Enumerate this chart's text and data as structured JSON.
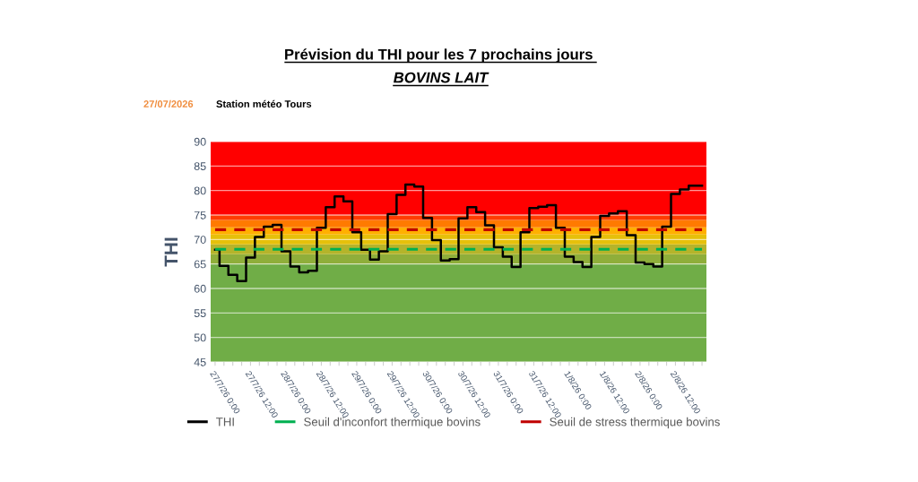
{
  "chart_data": {
    "type": "step",
    "title": "Prévision du THI pour les 7 prochains jours ",
    "subtitle": "BOVINS LAIT",
    "annotations": [
      "27/07/2026",
      "Station météo Tours"
    ],
    "ylabel": "THI",
    "categories": [
      "27/7/26 0:00",
      null,
      null,
      null,
      "27/7/26 12:00",
      null,
      null,
      null,
      "28/7/26 0:00",
      null,
      null,
      null,
      "28/7/26 12:00",
      null,
      null,
      null,
      "29/7/26 0:00",
      null,
      null,
      null,
      "29/7/26 12:00",
      null,
      null,
      null,
      "30/7/26 0:00",
      null,
      null,
      null,
      "30/7/26 12:00",
      null,
      null,
      null,
      "31/7/26 0:00",
      null,
      null,
      null,
      "31/7/26 12:00",
      null,
      null,
      null,
      "1/8/26 0:00",
      null,
      null,
      null,
      "1/8/26 12:00",
      null,
      null,
      null,
      "2/8/26 0:00",
      null,
      null,
      null,
      "2/8/26 12:00",
      null,
      null,
      null
    ],
    "series": [
      {
        "name": "THI",
        "color": "#000000",
        "line_style": "solid",
        "values": [
          67.9,
          64.6,
          62.8,
          61.5,
          66.3,
          70.5,
          72.6,
          73.0,
          67.6,
          64.5,
          63.3,
          63.6,
          72.4,
          76.6,
          78.8,
          77.8,
          71.5,
          67.9,
          65.9,
          67.6,
          75.2,
          79.1,
          81.2,
          80.8,
          74.4,
          69.9,
          65.7,
          66.0,
          74.3,
          76.6,
          75.6,
          72.9,
          68.4,
          66.5,
          64.4,
          71.5,
          76.4,
          76.7,
          77.0,
          72.4,
          66.5,
          65.4,
          64.4,
          70.5,
          74.8,
          75.3,
          75.8,
          70.9,
          65.3,
          65.0,
          64.5,
          72.6,
          79.3,
          80.2,
          81.0,
          81.0
        ]
      },
      {
        "name": "Seuil d'inconfort thermique bovins",
        "color": "#00b050",
        "type": "line",
        "line_style": "dashed",
        "values": [
          68,
          68,
          68,
          68,
          68,
          68,
          68,
          68,
          68,
          68,
          68,
          68,
          68,
          68,
          68,
          68,
          68,
          68,
          68,
          68,
          68,
          68,
          68,
          68,
          68,
          68,
          68,
          68,
          68,
          68,
          68,
          68,
          68,
          68,
          68,
          68,
          68,
          68,
          68,
          68,
          68,
          68,
          68,
          68,
          68,
          68,
          68,
          68,
          68,
          68,
          68,
          68,
          68,
          68,
          68,
          68
        ]
      },
      {
        "name": "Seuil de stress thermique bovins",
        "color": "#c00000",
        "type": "line",
        "line_style": "dashed",
        "values": [
          72,
          72,
          72,
          72,
          72,
          72,
          72,
          72,
          72,
          72,
          72,
          72,
          72,
          72,
          72,
          72,
          72,
          72,
          72,
          72,
          72,
          72,
          72,
          72,
          72,
          72,
          72,
          72,
          72,
          72,
          72,
          72,
          72,
          72,
          72,
          72,
          72,
          72,
          72,
          72,
          72,
          72,
          72,
          72,
          72,
          72,
          72,
          72,
          72,
          72,
          72,
          72,
          72,
          72,
          72,
          72
        ]
      }
    ],
    "bands": [
      {
        "axis": "y",
        "from": 45,
        "to": 65,
        "color": "#70ad47"
      },
      {
        "axis": "y",
        "from": 65,
        "to": 67,
        "color": "#8fae3a"
      },
      {
        "axis": "y",
        "from": 67,
        "to": 69,
        "color": "#b5b42a"
      },
      {
        "axis": "y",
        "from": 69,
        "to": 71,
        "color": "#e6c00a"
      },
      {
        "axis": "y",
        "from": 71,
        "to": 72.5,
        "color": "#ffb000"
      },
      {
        "axis": "y",
        "from": 72.5,
        "to": 74,
        "color": "#ff7a00"
      },
      {
        "axis": "y",
        "from": 74,
        "to": 75,
        "color": "#ff3c00"
      },
      {
        "axis": "y",
        "from": 75,
        "to": 90,
        "color": "#ff0000"
      }
    ],
    "ylim": [
      45,
      90
    ],
    "yticks": [
      45,
      50,
      55,
      60,
      65,
      70,
      75,
      80,
      85,
      90
    ],
    "grid": "y",
    "legend": "bottom"
  }
}
